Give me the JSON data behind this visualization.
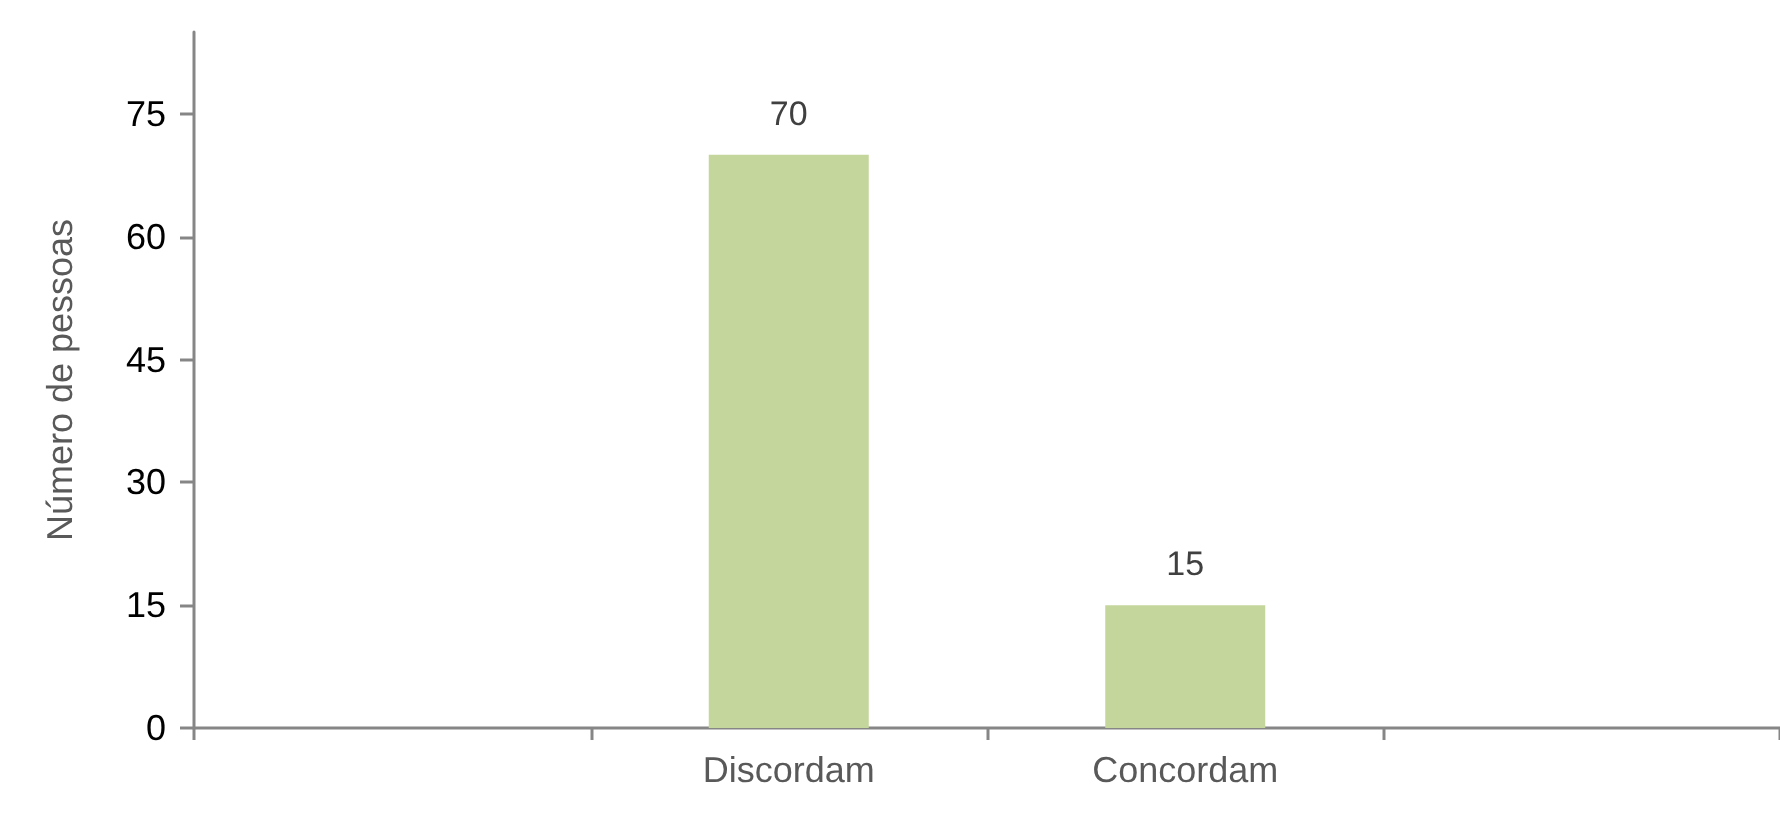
{
  "chart_data": {
    "type": "bar",
    "ylabel": "Número de pessoas",
    "categories": [
      null,
      "Discordam",
      "Concordam",
      null
    ],
    "values": [
      null,
      70,
      15,
      null
    ],
    "color": "#c4d69b",
    "ylim": [
      0,
      85
    ],
    "yticks": [
      0,
      15,
      30,
      45,
      60,
      75
    ],
    "data_labels": true
  }
}
